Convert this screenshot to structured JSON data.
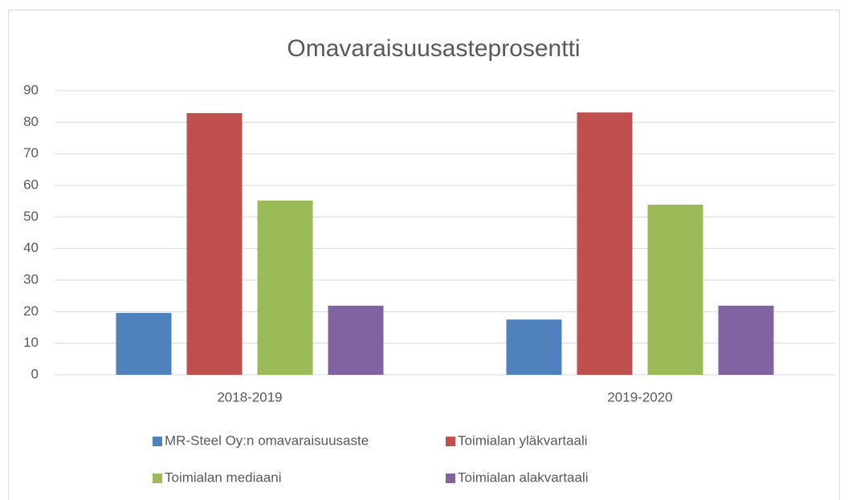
{
  "chart_data": {
    "type": "bar",
    "title": "Omavaraisuusasteprosentti",
    "categories": [
      "2018-2019",
      "2019-2020"
    ],
    "series": [
      {
        "name": "MR-Steel Oy:n omavaraisuusaste",
        "color": "#4f81bd",
        "values": [
          19.6,
          17.5
        ]
      },
      {
        "name": "Toimialan yläkvartaali",
        "color": "#c0504d",
        "values": [
          82.9,
          83.1
        ]
      },
      {
        "name": "Toimialan mediaani",
        "color": "#9bbb59",
        "values": [
          55.2,
          53.9
        ]
      },
      {
        "name": "Toimialan alakvartaali",
        "color": "#8064a2",
        "values": [
          21.9,
          21.9
        ]
      }
    ],
    "ylim": [
      0,
      90
    ],
    "yticks": [
      0,
      10,
      20,
      30,
      40,
      50,
      60,
      70,
      80,
      90
    ],
    "grid": true,
    "legend": "bottom"
  }
}
